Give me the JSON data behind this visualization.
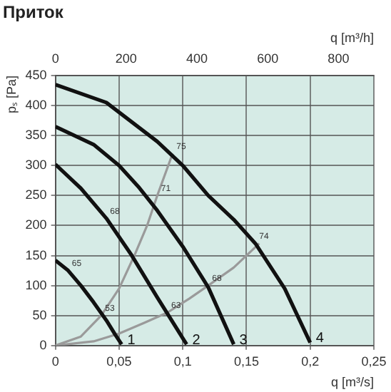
{
  "chart_data": {
    "type": "line",
    "title": "Приток",
    "xlabel": "q [m³/s]",
    "x2label": "q [m³/h]",
    "ylabel": "pₛ [Pa]",
    "xlim": [
      0,
      0.25
    ],
    "xticks": [
      0,
      {
        "value": 0.05,
        "label": "0,05"
      },
      {
        "value": 0.1,
        "label": "0,1"
      },
      {
        "value": 0.15,
        "label": "0,15"
      },
      {
        "value": 0.2,
        "label": "0,2"
      },
      {
        "value": 0.25,
        "label": "0,25"
      }
    ],
    "x2lim": [
      0,
      900
    ],
    "x2ticks": [
      0,
      200,
      400,
      600,
      800
    ],
    "ylim": [
      0,
      450
    ],
    "yticks": [
      0,
      50,
      100,
      150,
      200,
      250,
      300,
      350,
      400,
      450
    ],
    "grid": true,
    "legend": false,
    "marker": "none",
    "line_style": "solid",
    "series": [
      {
        "name": "1",
        "color": "#111111",
        "x": [
          0,
          0.01,
          0.02,
          0.03,
          0.04,
          0.047,
          0.052
        ],
        "values": [
          142,
          125,
          100,
          72,
          42,
          18,
          2
        ]
      },
      {
        "name": "2",
        "color": "#111111",
        "x": [
          0,
          0.02,
          0.04,
          0.06,
          0.08,
          0.103
        ],
        "values": [
          302,
          262,
          212,
          150,
          80,
          2
        ]
      },
      {
        "name": "3",
        "color": "#111111",
        "x": [
          0,
          0.03,
          0.05,
          0.065,
          0.08,
          0.1,
          0.12,
          0.14
        ],
        "values": [
          365,
          335,
          300,
          265,
          225,
          165,
          97,
          2
        ]
      },
      {
        "name": "4",
        "color": "#111111",
        "x": [
          0,
          0.04,
          0.08,
          0.1,
          0.12,
          0.14,
          0.157,
          0.18,
          0.2
        ],
        "values": [
          435,
          405,
          340,
          300,
          250,
          210,
          170,
          95,
          5
        ]
      },
      {
        "color": "#9a9a9a",
        "x": [
          0,
          0.02,
          0.036,
          0.05,
          0.062,
          0.072,
          0.08,
          0.092
        ],
        "values": [
          0,
          15,
          50,
          95,
          150,
          200,
          250,
          320
        ]
      },
      {
        "color": "#9a9a9a",
        "x": [
          0,
          0.03,
          0.05,
          0.07,
          0.088,
          0.105,
          0.12,
          0.14,
          0.16
        ],
        "values": [
          0,
          7,
          20,
          38,
          55,
          78,
          100,
          130,
          170
        ]
      }
    ],
    "annotations": [
      {
        "text": "65",
        "x": 0.01,
        "y": 125
      },
      {
        "text": "53",
        "x": 0.036,
        "y": 50
      },
      {
        "text": "68",
        "x": 0.04,
        "y": 212
      },
      {
        "text": "63",
        "x": 0.088,
        "y": 55
      },
      {
        "text": "71",
        "x": 0.08,
        "y": 250
      },
      {
        "text": "75",
        "x": 0.092,
        "y": 320
      },
      {
        "text": "68",
        "x": 0.12,
        "y": 100
      },
      {
        "text": "74",
        "x": 0.157,
        "y": 170
      }
    ]
  }
}
